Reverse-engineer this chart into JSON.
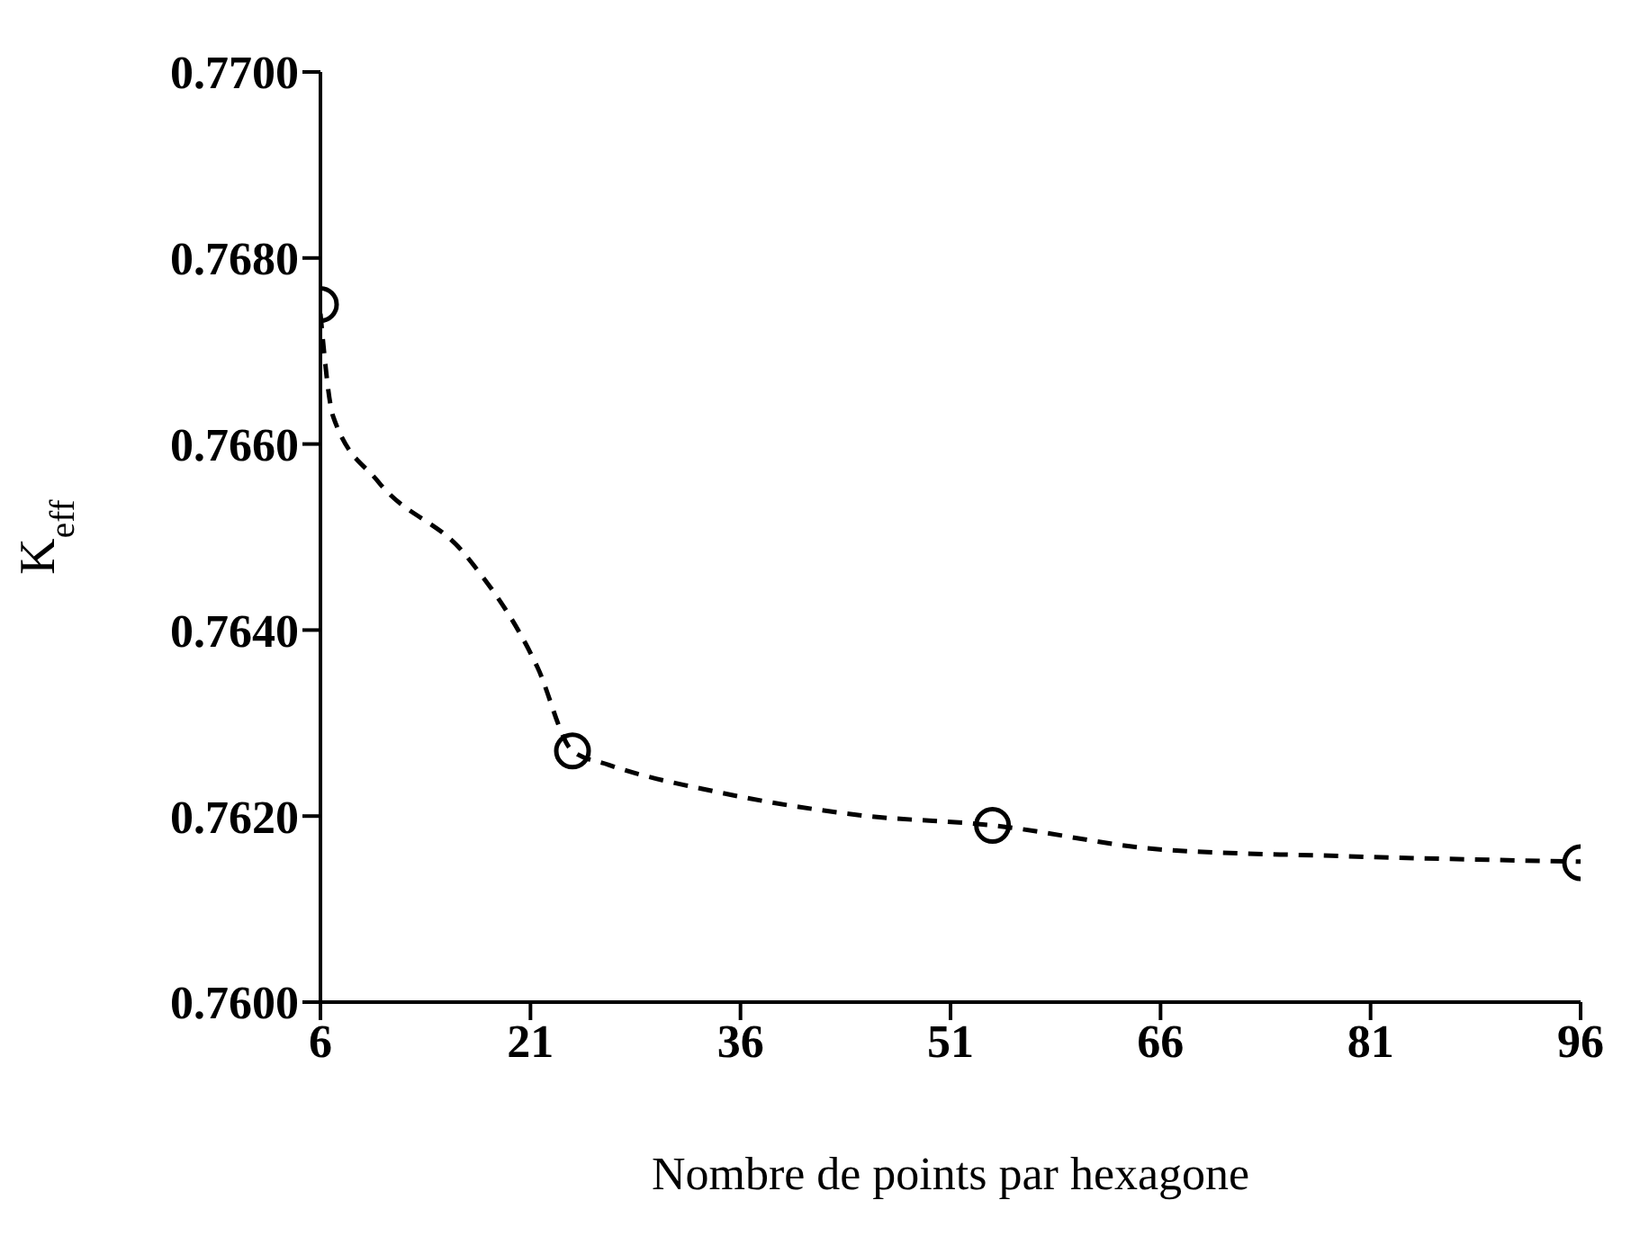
{
  "chart_data": {
    "type": "scatter",
    "xlabel": "Nombre de points par hexagone",
    "ylabel": "K$_{eff}$",
    "xlim": [
      6,
      96
    ],
    "xticks": [
      6,
      21,
      36,
      51,
      66,
      81,
      96
    ],
    "ylim": [
      0.76,
      0.77
    ],
    "yticks": [
      {
        "value": 0.76,
        "label": "0.7600"
      },
      {
        "value": 0.762,
        "label": "0.7620"
      },
      {
        "value": 0.764,
        "label": "0.7640"
      },
      {
        "value": 0.766,
        "label": "0.7660"
      },
      {
        "value": 0.768,
        "label": "0.7680"
      },
      {
        "value": 0.77,
        "label": "0.7700"
      }
    ],
    "grid": false,
    "series": [
      {
        "type": "line",
        "color": "#000000",
        "line_style": "dashed",
        "marker": "none",
        "x": [
          6,
          6.9,
          10.1,
          16.4,
          21.5,
          24,
          26.6,
          34.3,
          44.5,
          54,
          66.1,
          78.9,
          96
        ],
        "values": [
          0.7674,
          0.7663,
          0.7656,
          0.7648,
          0.7636,
          0.7627,
          0.76255,
          0.76226,
          0.76201,
          0.7619,
          0.76164,
          0.76157,
          0.76151
        ]
      },
      {
        "type": "scatter",
        "color": "#000000",
        "marker": "circle",
        "x": [
          6,
          24,
          54,
          96
        ],
        "values": [
          0.7675,
          0.7627,
          0.7619,
          0.7615
        ]
      }
    ]
  }
}
